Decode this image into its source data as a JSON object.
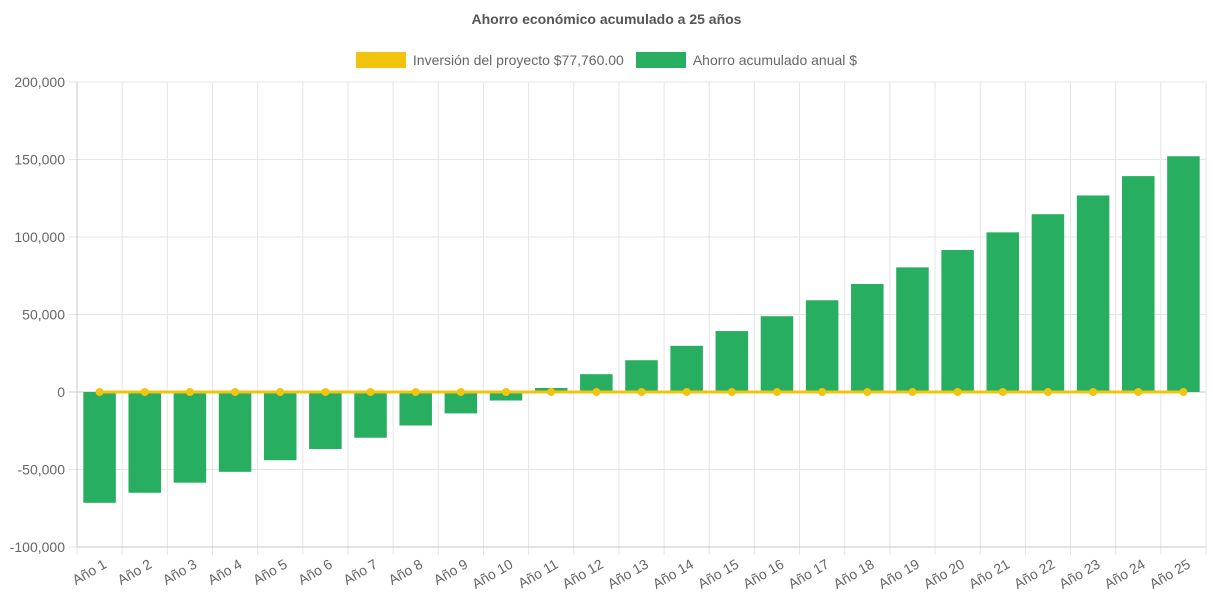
{
  "chart_data": {
    "type": "bar",
    "title": "Ahorro económico acumulado a 25 años",
    "categories": [
      "Año 1",
      "Año 2",
      "Año 3",
      "Año 4",
      "Año 5",
      "Año 6",
      "Año 7",
      "Año 8",
      "Año 9",
      "Año 10",
      "Año 11",
      "Año 12",
      "Año 13",
      "Año 14",
      "Año 15",
      "Año 16",
      "Año 17",
      "Año 18",
      "Año 19",
      "Año 20",
      "Año 21",
      "Año 22",
      "Año 23",
      "Año 24",
      "Año 25"
    ],
    "series": [
      {
        "name": "Inversión del proyecto $77,760.00",
        "type": "line",
        "color": "#f1c40f",
        "values": [
          0,
          0,
          0,
          0,
          0,
          0,
          0,
          0,
          0,
          0,
          0,
          0,
          0,
          0,
          0,
          0,
          0,
          0,
          0,
          0,
          0,
          0,
          0,
          0,
          0
        ]
      },
      {
        "name": "Ahorro acumulado anual $",
        "type": "bar",
        "color": "#27ae60",
        "values": [
          -71500,
          -65000,
          -58500,
          -51500,
          -44000,
          -36800,
          -29500,
          -21600,
          -13800,
          -5500,
          2600,
          11500,
          20500,
          29800,
          39300,
          48900,
          59200,
          69700,
          80400,
          91600,
          103000,
          114700,
          126800,
          139300,
          152100
        ]
      }
    ],
    "ylim": [
      -100000,
      200000
    ],
    "yticks": [
      "200,000",
      "150,000",
      "100,000",
      "50,000",
      "0",
      "-50,000",
      "-100,000"
    ],
    "ytick_values": [
      200000,
      150000,
      100000,
      50000,
      0,
      -50000,
      -100000
    ],
    "grid": true,
    "legend_position": "top"
  }
}
